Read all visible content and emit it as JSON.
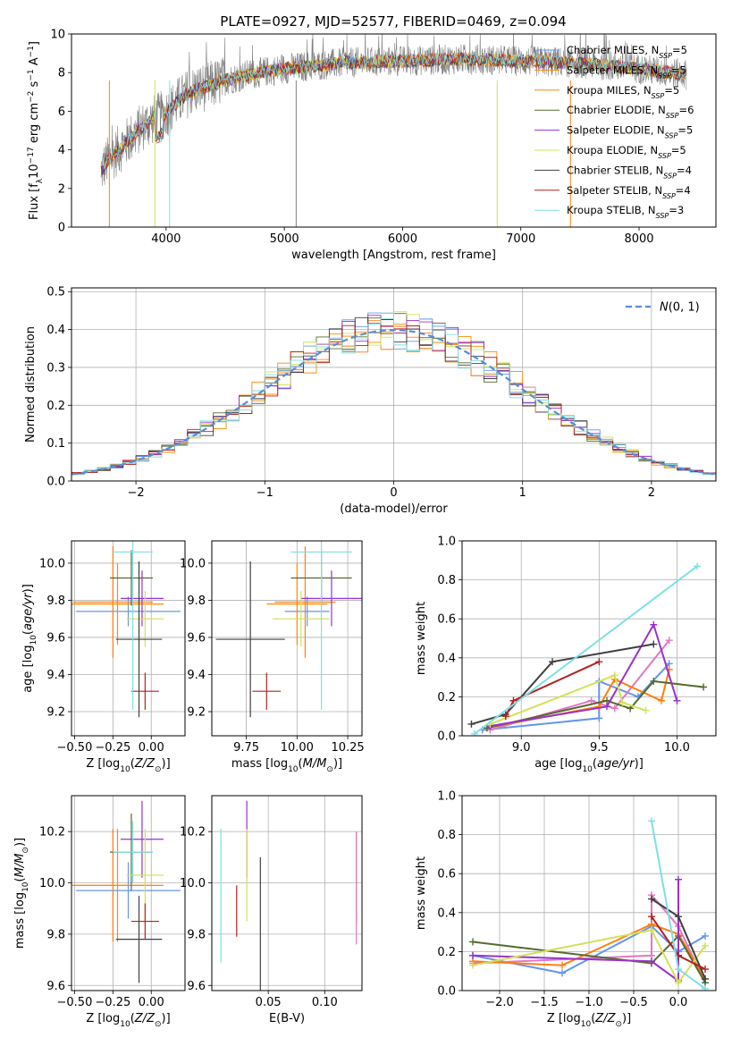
{
  "figure": {
    "title": "PLATE=0927, MJD=52577, FIBERID=0469, z=0.094"
  },
  "model_colors": [
    "#6495ed",
    "#ff7f0e",
    "#ff8c00",
    "#556b2f",
    "#9932cc",
    "#d4e157",
    "#404040",
    "#b22222",
    "#7fdfe4"
  ],
  "chart_data": [
    {
      "id": "spectrum",
      "type": "line",
      "title": "PLATE=0927, MJD=52577, FIBERID=0469, z=0.094",
      "xlabel": "wavelength [Angstrom, rest frame]",
      "ylabel": "Flux [f_λ 10^-17 erg cm^-2 s^-1 A^-1]",
      "xlim": [
        3200,
        8650
      ],
      "ylim": [
        0,
        10
      ],
      "xticks": [
        4000,
        5000,
        6000,
        7000,
        8000
      ],
      "yticks": [
        0,
        2,
        4,
        6,
        8,
        10
      ],
      "grid": false,
      "legend_position": "right",
      "legend": [
        {
          "label": "Chabrier MILES, N",
          "sub": "SSP",
          "tail": "=5",
          "color": "#6495ed"
        },
        {
          "label": "Salpeter MILES, N",
          "sub": "SSP",
          "tail": "=5",
          "color": "#ff7f0e"
        },
        {
          "label": "Kroupa MILES, N",
          "sub": "SSP",
          "tail": "=5",
          "color": "#ff8c00"
        },
        {
          "label": "Chabrier ELODIE, N",
          "sub": "SSP",
          "tail": "=6",
          "color": "#556b2f"
        },
        {
          "label": "Salpeter ELODIE, N",
          "sub": "SSP",
          "tail": "=5",
          "color": "#9932cc"
        },
        {
          "label": "Kroupa ELODIE, N",
          "sub": "SSP",
          "tail": "=5",
          "color": "#d4e157"
        },
        {
          "label": "Chabrier STELIB, N",
          "sub": "SSP",
          "tail": "=4",
          "color": "#404040"
        },
        {
          "label": "Salpeter STELIB, N",
          "sub": "SSP",
          "tail": "=4",
          "color": "#b22222"
        },
        {
          "label": "Kroupa STELIB, N",
          "sub": "SSP",
          "tail": "=3",
          "color": "#7fdfe4"
        }
      ],
      "data_series": {
        "name": "data",
        "color": "#808080",
        "x_range": [
          3450,
          8400
        ],
        "continuum_x": [
          3450,
          3500,
          3600,
          3700,
          3800,
          3900,
          4000,
          4100,
          4200,
          4300,
          4400,
          4500,
          4700,
          5000,
          5500,
          6000,
          6500,
          7000,
          7500,
          8000,
          8400
        ],
        "continuum_y": [
          2.9,
          3.4,
          4.0,
          4.6,
          5.2,
          5.6,
          5.9,
          6.5,
          7.0,
          7.2,
          7.4,
          7.6,
          7.9,
          8.2,
          8.5,
          8.6,
          8.7,
          8.6,
          8.5,
          8.2,
          7.9
        ]
      },
      "model_series": {
        "name": "models",
        "continuum_x": [
          3450,
          3500,
          3600,
          3700,
          3800,
          3900,
          4000,
          4100,
          4200,
          4300,
          4400,
          4500,
          4700,
          5000,
          5500,
          6000,
          6500,
          7000,
          7500,
          8000,
          8400
        ],
        "continuum_y": [
          2.9,
          3.4,
          4.0,
          4.6,
          5.2,
          5.6,
          5.9,
          6.5,
          7.0,
          7.2,
          7.4,
          7.6,
          7.9,
          8.2,
          8.5,
          8.6,
          8.7,
          8.6,
          8.5,
          8.2,
          7.9
        ]
      }
    },
    {
      "id": "residuals",
      "type": "histogram",
      "xlabel": "(data-model)/error",
      "ylabel": "Normed distribution",
      "xlim": [
        -2.5,
        2.5
      ],
      "ylim": [
        0,
        0.51
      ],
      "xticks": [
        -2,
        -1,
        0,
        1,
        2
      ],
      "yticks": [
        0.0,
        0.1,
        0.2,
        0.3,
        0.4,
        0.5
      ],
      "grid": true,
      "legend_position": "upper right",
      "legend_label": "N(0,1)",
      "reference_curve": {
        "name": "N(0,1)",
        "mean": 0,
        "sigma": 1,
        "color": "#5b8bd8"
      },
      "histogram_bins": {
        "start": -2.5,
        "width": 0.1,
        "count": 50
      },
      "histogram_shape": "approximately gaussian, peak ~0.40-0.48 near 0"
    },
    {
      "id": "age_vs_Z",
      "type": "errorbar",
      "xlabel": "Z [log10(Z/Z☉)]",
      "ylabel": "age [log10(age/yr)]",
      "xlim": [
        -0.52,
        0.22
      ],
      "ylim": [
        9.07,
        10.12
      ],
      "xticks": [
        -0.5,
        -0.25,
        0.0
      ],
      "yticks": [
        9.2,
        9.4,
        9.6,
        9.8,
        10.0
      ],
      "grid": true,
      "points": [
        {
          "x": -0.15,
          "xerr": 0.34,
          "y": 9.74,
          "yerr": 0.08,
          "color": "#6495ed"
        },
        {
          "x": -0.25,
          "xerr": 0.26,
          "y": 9.79,
          "yerr": 0.3,
          "color": "#ff7f0e"
        },
        {
          "x": -0.22,
          "xerr": 0.3,
          "y": 9.78,
          "yerr": 0.22,
          "color": "#ff8c00"
        },
        {
          "x": -0.13,
          "xerr": 0.14,
          "y": 9.92,
          "yerr": 0.15,
          "color": "#556b2f"
        },
        {
          "x": -0.06,
          "xerr": 0.14,
          "y": 9.81,
          "yerr": 0.15,
          "color": "#9932cc"
        },
        {
          "x": -0.04,
          "xerr": 0.12,
          "y": 9.7,
          "yerr": 0.15,
          "color": "#d4e157"
        },
        {
          "x": -0.08,
          "xerr": 0.15,
          "y": 9.59,
          "yerr": 0.42,
          "color": "#404040"
        },
        {
          "x": -0.04,
          "xerr": 0.09,
          "y": 9.31,
          "yerr": 0.1,
          "color": "#b22222"
        },
        {
          "x": -0.12,
          "xerr": 0.13,
          "y": 10.06,
          "yerr": 0.85,
          "color": "#7fdfe4"
        }
      ]
    },
    {
      "id": "age_vs_mass",
      "type": "errorbar",
      "xlabel": "mass [log10(M/M☉)]",
      "ylabel": "",
      "xlim": [
        9.58,
        10.32
      ],
      "ylim": [
        9.07,
        10.12
      ],
      "xticks": [
        9.75,
        10.0,
        10.25
      ],
      "yticks": [
        9.2,
        9.4,
        9.6,
        9.8,
        10.0
      ],
      "grid": true,
      "points": [
        {
          "x": 10.05,
          "xerr": 0.11,
          "y": 9.74,
          "yerr": 0.08,
          "color": "#6495ed"
        },
        {
          "x": 10.04,
          "xerr": 0.15,
          "y": 9.79,
          "yerr": 0.3,
          "color": "#ff7f0e"
        },
        {
          "x": 10.0,
          "xerr": 0.15,
          "y": 9.78,
          "yerr": 0.22,
          "color": "#ff8c00"
        },
        {
          "x": 10.12,
          "xerr": 0.15,
          "y": 9.92,
          "yerr": 0.15,
          "color": "#556b2f"
        },
        {
          "x": 10.17,
          "xerr": 0.15,
          "y": 9.81,
          "yerr": 0.15,
          "color": "#9932cc"
        },
        {
          "x": 10.02,
          "xerr": 0.14,
          "y": 9.7,
          "yerr": 0.15,
          "color": "#d4e157"
        },
        {
          "x": 9.77,
          "xerr": 0.17,
          "y": 9.59,
          "yerr": 0.42,
          "color": "#404040"
        },
        {
          "x": 9.85,
          "xerr": 0.07,
          "y": 9.31,
          "yerr": 0.1,
          "color": "#b22222"
        },
        {
          "x": 10.12,
          "xerr": 0.15,
          "y": 10.06,
          "yerr": 0.85,
          "color": "#7fdfe4"
        }
      ]
    },
    {
      "id": "massweight_vs_age",
      "type": "line",
      "xlabel": "age [log10(age/yr)]",
      "ylabel": "mass weight",
      "xlim": [
        8.62,
        10.25
      ],
      "ylim": [
        0,
        1.0
      ],
      "xticks": [
        9.0,
        9.5,
        10.0
      ],
      "yticks": [
        0.0,
        0.2,
        0.4,
        0.6,
        0.8,
        1.0
      ],
      "grid": true,
      "series": [
        {
          "color": "#6495ed",
          "x": [
            8.75,
            9.5,
            9.5,
            9.75,
            9.95
          ],
          "y": [
            0.03,
            0.09,
            0.28,
            0.2,
            0.37
          ]
        },
        {
          "color": "#e377c2",
          "x": [
            8.8,
            9.45,
            9.6,
            9.95
          ],
          "y": [
            0.03,
            0.18,
            0.14,
            0.49
          ]
        },
        {
          "color": "#ff7f0e",
          "x": [
            8.78,
            9.5,
            9.6,
            9.9,
            9.95
          ],
          "y": [
            0.04,
            0.15,
            0.29,
            0.18,
            0.34
          ]
        },
        {
          "color": "#556b2f",
          "x": [
            8.78,
            9.55,
            9.7,
            9.85,
            10.17
          ],
          "y": [
            0.04,
            0.18,
            0.14,
            0.28,
            0.25
          ]
        },
        {
          "color": "#9932cc",
          "x": [
            8.8,
            9.55,
            9.85,
            10.0
          ],
          "y": [
            0.05,
            0.15,
            0.57,
            0.18
          ]
        },
        {
          "color": "#d4e157",
          "x": [
            8.8,
            9.6,
            9.65,
            9.8
          ],
          "y": [
            0.06,
            0.31,
            0.17,
            0.13
          ]
        },
        {
          "color": "#404040",
          "x": [
            8.68,
            8.9,
            9.2,
            9.85
          ],
          "y": [
            0.06,
            0.11,
            0.38,
            0.47
          ]
        },
        {
          "color": "#b22222",
          "x": [
            8.9,
            8.95,
            9.5
          ],
          "y": [
            0.1,
            0.18,
            0.38
          ]
        },
        {
          "color": "#7fdfe4",
          "x": [
            8.7,
            10.13
          ],
          "y": [
            0.01,
            0.87
          ]
        }
      ]
    },
    {
      "id": "mass_vs_Z",
      "type": "errorbar",
      "xlabel": "Z [log10(Z/Z☉)]",
      "ylabel": "mass [log10(M/M☉)]",
      "xlim": [
        -0.52,
        0.22
      ],
      "ylim": [
        9.58,
        10.34
      ],
      "xticks": [
        -0.5,
        -0.25,
        0.0
      ],
      "yticks": [
        9.6,
        9.8,
        10.0,
        10.2
      ],
      "grid": true,
      "points": [
        {
          "x": -0.15,
          "xerr": 0.34,
          "y": 9.97,
          "yerr": 0.11,
          "color": "#6495ed"
        },
        {
          "x": -0.25,
          "xerr": 0.26,
          "y": 9.99,
          "yerr": 0.22,
          "color": "#ff7f0e"
        },
        {
          "x": -0.22,
          "xerr": 0.3,
          "y": 9.99,
          "yerr": 0.22,
          "color": "#ff8c00"
        },
        {
          "x": -0.13,
          "xerr": 0.14,
          "y": 10.12,
          "yerr": 0.15,
          "color": "#556b2f"
        },
        {
          "x": -0.06,
          "xerr": 0.14,
          "y": 10.17,
          "yerr": 0.15,
          "color": "#9932cc"
        },
        {
          "x": -0.04,
          "xerr": 0.12,
          "y": 10.03,
          "yerr": 0.18,
          "color": "#d4e157"
        },
        {
          "x": -0.08,
          "xerr": 0.15,
          "y": 9.78,
          "yerr": 0.17,
          "color": "#404040"
        },
        {
          "x": -0.04,
          "xerr": 0.09,
          "y": 9.85,
          "yerr": 0.07,
          "color": "#b22222"
        },
        {
          "x": -0.12,
          "xerr": 0.13,
          "y": 10.12,
          "yerr": 0.12,
          "color": "#7fdfe4"
        }
      ]
    },
    {
      "id": "mass_vs_ebv",
      "type": "errorbar",
      "xlabel": "E(B-V)",
      "ylabel": "",
      "xlim": [
        0.0,
        0.133
      ],
      "ylim": [
        9.58,
        10.34
      ],
      "xticks": [
        0.05,
        0.1
      ],
      "yticks": [
        9.6,
        9.8,
        10.0,
        10.2
      ],
      "grid": true,
      "points": [
        {
          "x": 0.128,
          "y": 10.02,
          "yerr": 0.18,
          "color": "#ff7f0e"
        },
        {
          "x": 0.128,
          "y": 9.98,
          "yerr": 0.22,
          "color": "#e377c2"
        },
        {
          "x": 0.031,
          "y": 10.17,
          "yerr": 0.15,
          "color": "#9932cc"
        },
        {
          "x": 0.031,
          "y": 10.03,
          "yerr": 0.18,
          "color": "#d4e157"
        },
        {
          "x": 0.043,
          "y": 9.83,
          "yerr": 0.27,
          "color": "#404040"
        },
        {
          "x": 0.022,
          "y": 9.89,
          "yerr": 0.1,
          "color": "#b22222"
        },
        {
          "x": 0.008,
          "y": 9.95,
          "yerr": 0.26,
          "color": "#7fdfe4"
        }
      ]
    },
    {
      "id": "massweight_vs_Z",
      "type": "line",
      "xlabel": "Z [log10(Z/Z☉)]",
      "ylabel": "mass weight",
      "xlim": [
        -2.42,
        0.42
      ],
      "ylim": [
        0,
        1.0
      ],
      "xticks": [
        -2.0,
        -1.5,
        -1.0,
        -0.5,
        0.0
      ],
      "yticks": [
        0.0,
        0.2,
        0.4,
        0.6,
        0.8,
        1.0
      ],
      "grid": true,
      "series": [
        {
          "color": "#6495ed",
          "x": [
            -2.3,
            -1.3,
            -0.3,
            0.0,
            0.3
          ],
          "y": [
            0.18,
            0.09,
            0.33,
            0.2,
            0.28
          ]
        },
        {
          "color": "#e377c2",
          "x": [
            -2.3,
            -0.3,
            -0.3,
            0.0,
            0.3
          ],
          "y": [
            0.14,
            0.18,
            0.49,
            0.33,
            0.04
          ]
        },
        {
          "color": "#ff7f0e",
          "x": [
            -2.3,
            -1.3,
            -0.3,
            0.0,
            0.3
          ],
          "y": [
            0.15,
            0.13,
            0.34,
            0.29,
            0.06
          ]
        },
        {
          "color": "#556b2f",
          "x": [
            -2.3,
            -0.3,
            0.0,
            0.3
          ],
          "y": [
            0.25,
            0.14,
            0.28,
            0.04
          ]
        },
        {
          "color": "#9932cc",
          "x": [
            -2.3,
            -0.3,
            0.0,
            0.0
          ],
          "y": [
            0.18,
            0.15,
            0.05,
            0.57
          ]
        },
        {
          "color": "#d4e157",
          "x": [
            -2.3,
            -0.3,
            0.0,
            0.3
          ],
          "y": [
            0.13,
            0.31,
            0.04,
            0.23
          ]
        },
        {
          "color": "#404040",
          "x": [
            -0.3,
            0.0,
            0.3
          ],
          "y": [
            0.47,
            0.38,
            0.06
          ]
        },
        {
          "color": "#b22222",
          "x": [
            -0.3,
            0.0,
            0.3
          ],
          "y": [
            0.38,
            0.18,
            0.11
          ]
        },
        {
          "color": "#7fdfe4",
          "x": [
            -0.3,
            0.0,
            0.3
          ],
          "y": [
            0.87,
            0.11,
            0.01
          ]
        }
      ]
    }
  ]
}
